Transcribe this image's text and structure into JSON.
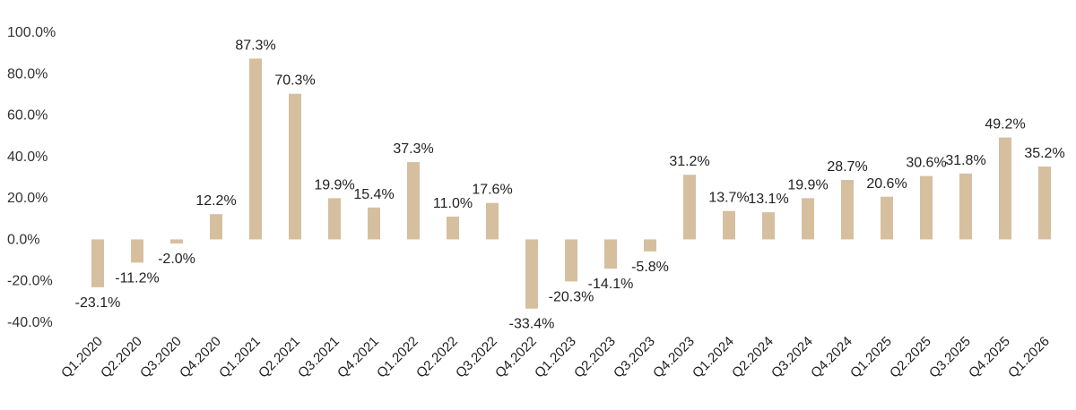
{
  "chart_data": {
    "type": "bar",
    "title": "",
    "xlabel": "",
    "ylabel": "",
    "categories": [
      "Q1.2020",
      "Q2.2020",
      "Q3.2020",
      "Q4.2020",
      "Q1.2021",
      "Q2.2021",
      "Q3.2021",
      "Q4.2021",
      "Q1.2022",
      "Q2.2022",
      "Q3.2022",
      "Q4.2022",
      "Q1.2023",
      "Q2.2023",
      "Q3.2023",
      "Q4.2023",
      "Q1.2024",
      "Q2.2024",
      "Q3.2024",
      "Q4.2024",
      "Q1.2025",
      "Q2.2025",
      "Q3.2025",
      "Q4.2025",
      "Q1.2026"
    ],
    "values": [
      -23.1,
      -11.2,
      -2.0,
      12.2,
      87.3,
      70.3,
      19.9,
      15.4,
      37.3,
      11.0,
      17.6,
      -33.4,
      -20.3,
      -14.1,
      -5.8,
      31.2,
      13.7,
      13.1,
      19.9,
      28.7,
      20.6,
      30.6,
      31.8,
      49.2,
      35.2
    ],
    "data_labels": [
      "-23.1%",
      "-11.2%",
      "-2.0%",
      "12.2%",
      "87.3%",
      "70.3%",
      "19.9%",
      "15.4%",
      "37.3%",
      "11.0%",
      "17.6%",
      "-33.4%",
      "-20.3%",
      "-14.1%",
      "-5.8%",
      "31.2%",
      "13.7%",
      "13.1%",
      "19.9%",
      "28.7%",
      "20.6%",
      "30.6%",
      "31.8%",
      "49.2%",
      "35.2%"
    ],
    "ylim": [
      -40,
      100
    ],
    "yticks": [
      100,
      80,
      60,
      40,
      20,
      0,
      -20,
      -40
    ],
    "ytick_labels": [
      "100.0%",
      "80.0%",
      "60.0%",
      "40.0%",
      "20.0%",
      "0.0%",
      "-20.0%",
      "-40.0%"
    ],
    "grid": false,
    "legend": "none",
    "bar_color": "#d6bf9f"
  }
}
